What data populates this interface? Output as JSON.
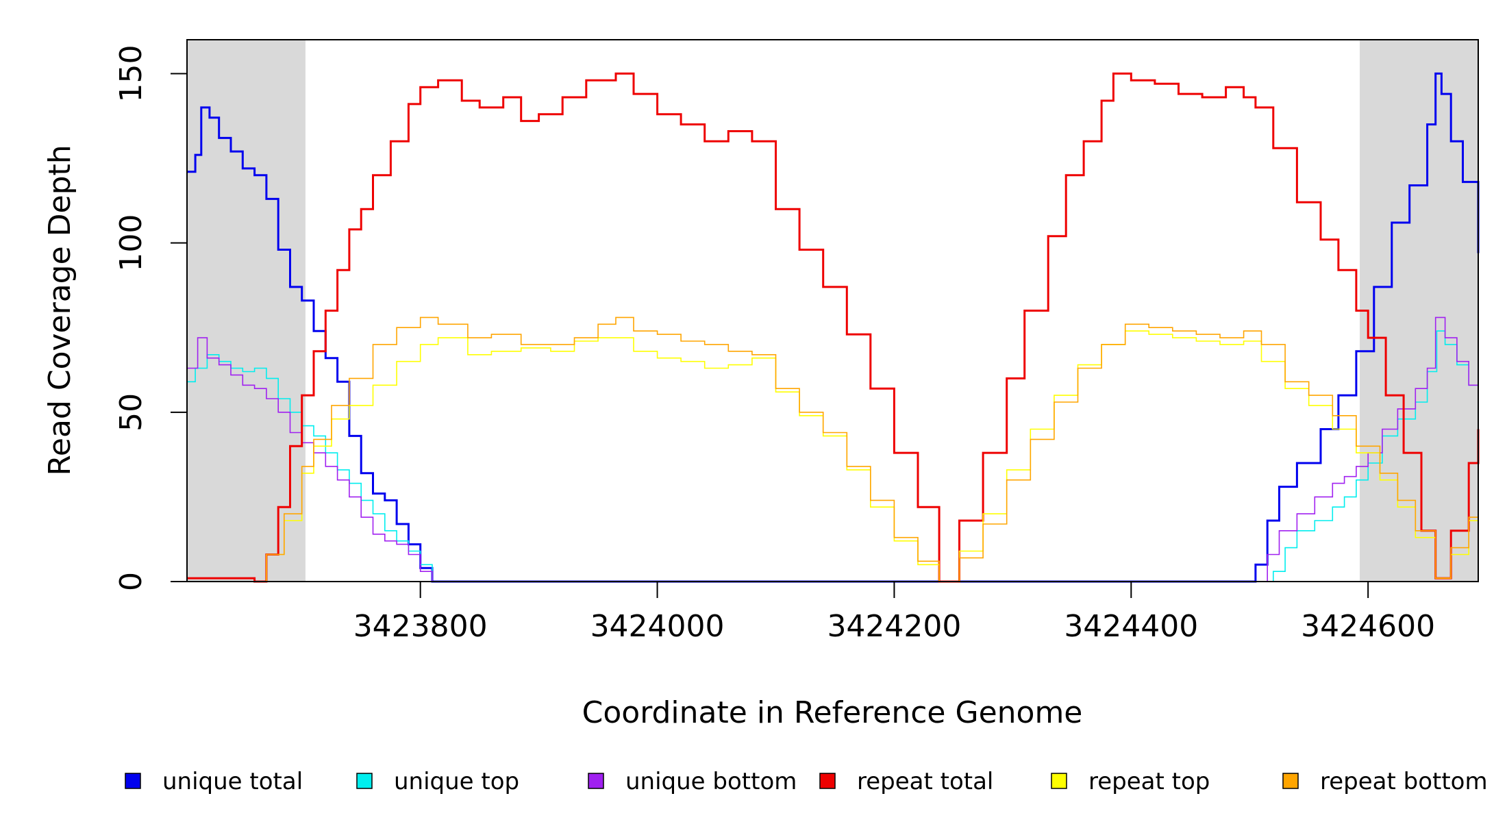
{
  "chart_data": {
    "type": "line",
    "xlabel": "Coordinate in Reference Genome",
    "ylabel": "Read Coverage Depth",
    "xlim": [
      3423603,
      3424693
    ],
    "ylim": [
      0,
      160
    ],
    "x_ticks": [
      3423800,
      3424000,
      3424200,
      3424400,
      3424600
    ],
    "y_ticks": [
      0,
      50,
      100,
      150
    ],
    "x_tick_labels": [
      "3423800",
      "3424000",
      "3424200",
      "3424400",
      "3424600"
    ],
    "y_tick_labels": [
      "0",
      "50",
      "100",
      "150"
    ],
    "shaded_regions": [
      [
        3423603,
        3423703
      ],
      [
        3424593,
        3424693
      ]
    ],
    "shade_color": "#d9d9d9",
    "grid": false,
    "legend_position": "bottom",
    "series": [
      {
        "name": "unique total",
        "color": "#0000ee",
        "x": [
          3423603,
          3423610,
          3423615,
          3423622,
          3423630,
          3423640,
          3423650,
          3423660,
          3423670,
          3423680,
          3423690,
          3423700,
          3423710,
          3423720,
          3423730,
          3423740,
          3423750,
          3423760,
          3423770,
          3423780,
          3423790,
          3423800,
          3423810,
          3424500,
          3424505,
          3424515,
          3424525,
          3424540,
          3424560,
          3424575,
          3424590,
          3424605,
          3424620,
          3424635,
          3424650,
          3424657,
          3424662,
          3424670,
          3424680,
          3424693
        ],
        "y": [
          121,
          126,
          140,
          137,
          131,
          127,
          122,
          120,
          113,
          98,
          87,
          83,
          74,
          66,
          59,
          43,
          32,
          26,
          24,
          17,
          11,
          4,
          0,
          0,
          5,
          18,
          28,
          35,
          45,
          55,
          68,
          87,
          106,
          117,
          135,
          150,
          144,
          130,
          118,
          97
        ]
      },
      {
        "name": "unique top",
        "color": "#00eeee",
        "x": [
          3423603,
          3423610,
          3423620,
          3423630,
          3423640,
          3423650,
          3423660,
          3423670,
          3423680,
          3423690,
          3423700,
          3423710,
          3423720,
          3423730,
          3423740,
          3423750,
          3423760,
          3423770,
          3423780,
          3423790,
          3423800,
          3423810,
          3424510,
          3424520,
          3424530,
          3424540,
          3424555,
          3424570,
          3424580,
          3424590,
          3424600,
          3424612,
          3424625,
          3424640,
          3424650,
          3424658,
          3424665,
          3424675,
          3424685,
          3424693
        ],
        "y": [
          59,
          63,
          67,
          65,
          63,
          62,
          63,
          60,
          54,
          50,
          46,
          43,
          38,
          33,
          29,
          24,
          20,
          15,
          12,
          9,
          5,
          0,
          0,
          3,
          10,
          15,
          18,
          22,
          25,
          30,
          35,
          43,
          48,
          53,
          62,
          74,
          70,
          64,
          58,
          48
        ]
      },
      {
        "name": "unique bottom",
        "color": "#a020f0",
        "x": [
          3423603,
          3423612,
          3423620,
          3423630,
          3423640,
          3423650,
          3423660,
          3423670,
          3423680,
          3423690,
          3423700,
          3423710,
          3423720,
          3423730,
          3423740,
          3423750,
          3423760,
          3423770,
          3423780,
          3423790,
          3423800,
          3423810,
          3424505,
          3424515,
          3424525,
          3424540,
          3424555,
          3424570,
          3424580,
          3424590,
          3424600,
          3424612,
          3424625,
          3424640,
          3424650,
          3424657,
          3424665,
          3424675,
          3424685,
          3424693
        ],
        "y": [
          63,
          72,
          66,
          64,
          61,
          58,
          57,
          54,
          50,
          44,
          41,
          38,
          34,
          30,
          25,
          19,
          14,
          12,
          11,
          8,
          3,
          0,
          0,
          8,
          15,
          20,
          25,
          29,
          31,
          34,
          38,
          45,
          51,
          57,
          63,
          78,
          72,
          65,
          58,
          50
        ]
      },
      {
        "name": "repeat total",
        "color": "#ee0000",
        "x": [
          3423603,
          3423645,
          3423660,
          3423670,
          3423680,
          3423690,
          3423700,
          3423710,
          3423720,
          3423730,
          3423740,
          3423750,
          3423760,
          3423775,
          3423790,
          3423800,
          3423815,
          3423835,
          3423850,
          3423870,
          3423885,
          3423900,
          3423920,
          3423940,
          3423965,
          3423980,
          3424000,
          3424020,
          3424040,
          3424060,
          3424080,
          3424100,
          3424120,
          3424140,
          3424160,
          3424180,
          3424200,
          3424220,
          3424238,
          3424255,
          3424275,
          3424295,
          3424310,
          3424330,
          3424345,
          3424360,
          3424375,
          3424385,
          3424400,
          3424420,
          3424440,
          3424460,
          3424480,
          3424495,
          3424505,
          3424520,
          3424540,
          3424560,
          3424575,
          3424590,
          3424600,
          3424615,
          3424630,
          3424645,
          3424657,
          3424670,
          3424685,
          3424693
        ],
        "y": [
          1,
          1,
          0,
          8,
          22,
          40,
          55,
          68,
          80,
          92,
          104,
          110,
          120,
          130,
          141,
          146,
          148,
          142,
          140,
          143,
          136,
          138,
          143,
          148,
          150,
          144,
          138,
          135,
          130,
          133,
          130,
          110,
          98,
          87,
          73,
          57,
          38,
          22,
          0,
          18,
          38,
          60,
          80,
          102,
          120,
          130,
          142,
          150,
          148,
          147,
          144,
          143,
          146,
          143,
          140,
          128,
          112,
          101,
          92,
          80,
          72,
          55,
          38,
          15,
          1,
          15,
          35,
          45
        ]
      },
      {
        "name": "repeat top",
        "color": "#ffff00",
        "x": [
          3423603,
          3423655,
          3423670,
          3423685,
          3423700,
          3423710,
          3423725,
          3423740,
          3423760,
          3423780,
          3423800,
          3423815,
          3423840,
          3423860,
          3423885,
          3423910,
          3423930,
          3423950,
          3423960,
          3423980,
          3424000,
          3424020,
          3424040,
          3424060,
          3424080,
          3424100,
          3424120,
          3424140,
          3424160,
          3424180,
          3424200,
          3424220,
          3424238,
          3424255,
          3424275,
          3424295,
          3424315,
          3424335,
          3424355,
          3424375,
          3424395,
          3424415,
          3424435,
          3424455,
          3424475,
          3424495,
          3424510,
          3424530,
          3424550,
          3424570,
          3424590,
          3424610,
          3424625,
          3424640,
          3424657,
          3424670,
          3424685,
          3424693
        ],
        "y": [
          0,
          0,
          8,
          18,
          32,
          40,
          48,
          52,
          58,
          65,
          70,
          72,
          67,
          68,
          69,
          68,
          71,
          72,
          72,
          68,
          66,
          65,
          63,
          64,
          66,
          56,
          49,
          43,
          33,
          22,
          12,
          5,
          0,
          9,
          20,
          33,
          45,
          55,
          64,
          70,
          74,
          73,
          72,
          71,
          70,
          71,
          65,
          57,
          52,
          45,
          38,
          30,
          22,
          13,
          1,
          8,
          18,
          24
        ]
      },
      {
        "name": "repeat bottom",
        "color": "#ffa500",
        "x": [
          3423603,
          3423655,
          3423670,
          3423685,
          3423700,
          3423710,
          3423725,
          3423740,
          3423760,
          3423780,
          3423800,
          3423815,
          3423840,
          3423860,
          3423885,
          3423910,
          3423930,
          3423950,
          3423965,
          3423980,
          3424000,
          3424020,
          3424040,
          3424060,
          3424080,
          3424100,
          3424120,
          3424140,
          3424160,
          3424180,
          3424200,
          3424220,
          3424238,
          3424255,
          3424275,
          3424295,
          3424315,
          3424335,
          3424355,
          3424375,
          3424395,
          3424415,
          3424435,
          3424455,
          3424475,
          3424495,
          3424510,
          3424530,
          3424550,
          3424570,
          3424590,
          3424610,
          3424625,
          3424640,
          3424657,
          3424670,
          3424685,
          3424693
        ],
        "y": [
          0,
          0,
          8,
          20,
          34,
          42,
          52,
          60,
          70,
          75,
          78,
          76,
          72,
          73,
          70,
          70,
          72,
          76,
          78,
          74,
          73,
          71,
          70,
          68,
          67,
          57,
          50,
          44,
          34,
          24,
          13,
          6,
          0,
          7,
          17,
          30,
          42,
          53,
          63,
          70,
          76,
          75,
          74,
          73,
          72,
          74,
          70,
          59,
          55,
          49,
          40,
          32,
          24,
          15,
          1,
          10,
          19,
          23
        ]
      }
    ]
  }
}
